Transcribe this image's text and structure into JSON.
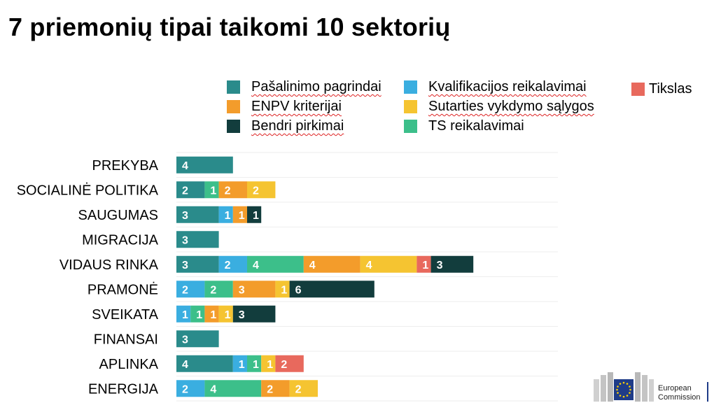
{
  "title": "7 priemonių tipai taikomi 10 sektorių",
  "logo": {
    "line1": "European",
    "line2": "Commission"
  },
  "colors": {
    "pasalinimo": "#2a8b8b",
    "kvalifikacijos": "#3aaee0",
    "tikslas": "#e8695d",
    "enpv": "#f39c2b",
    "sutarties": "#f5c431",
    "bendri": "#123d3d",
    "ts": "#3cbf8a"
  },
  "chart_data": {
    "type": "bar",
    "orientation": "horizontal",
    "stacked": true,
    "title": "7 priemonių tipai taikomi 10 sektorių",
    "legend_position": "top-right",
    "categories": [
      "PREKYBA",
      "SOCIALINĖ POLITIKA",
      "SAUGUMAS",
      "MIGRACIJA",
      "VIDAUS RINKA",
      "PRAMONĖ",
      "SVEIKATA",
      "FINANSAI",
      "APLINKA",
      "ENERGIJA"
    ],
    "series": [
      {
        "key": "pasalinimo",
        "name": "Pašalinimo pagrindai",
        "values": [
          4,
          2,
          3,
          3,
          3,
          0,
          0,
          3,
          4,
          0
        ]
      },
      {
        "key": "kvalifikacijos",
        "name": "Kvalifikacijos reikalavimai",
        "values": [
          0,
          0,
          1,
          0,
          2,
          2,
          1,
          0,
          1,
          2
        ]
      },
      {
        "key": "ts",
        "name": "TS reikalavimai",
        "values": [
          0,
          1,
          0,
          0,
          4,
          2,
          1,
          0,
          1,
          4
        ]
      },
      {
        "key": "enpv",
        "name": "ENPV kriterijai",
        "values": [
          0,
          2,
          1,
          0,
          4,
          3,
          1,
          0,
          0,
          2
        ]
      },
      {
        "key": "sutarties",
        "name": "Sutarties vykdymo sąlygos",
        "values": [
          0,
          2,
          0,
          0,
          4,
          1,
          1,
          0,
          1,
          2
        ]
      },
      {
        "key": "tikslas",
        "name": "Tikslas",
        "values": [
          0,
          0,
          0,
          0,
          1,
          0,
          0,
          0,
          2,
          0
        ]
      },
      {
        "key": "bendri",
        "name": "Bendri pirkimai",
        "values": [
          0,
          0,
          1,
          0,
          3,
          6,
          3,
          0,
          0,
          0
        ]
      }
    ]
  }
}
